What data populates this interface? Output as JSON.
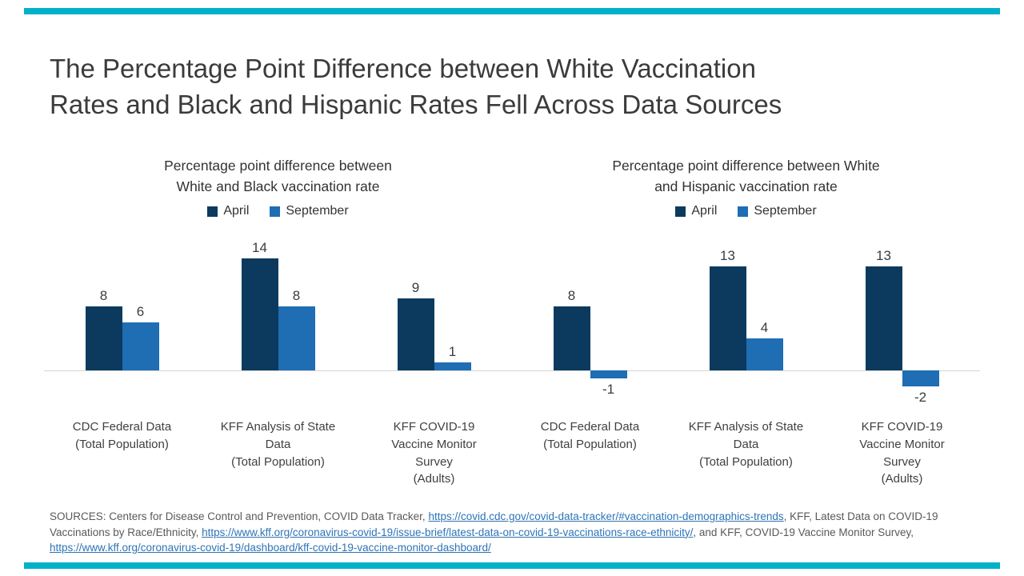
{
  "slide": {
    "title": "The Percentage Point Difference between White Vaccination\nRates and Black and Hispanic Rates Fell Across Data Sources"
  },
  "colors": {
    "accent": "#00b1c9",
    "april": "#0b3a5e",
    "september": "#1f6db3",
    "link": "#2e74b5"
  },
  "chart_data": [
    {
      "type": "bar",
      "title": "Percentage point difference between\nWhite and Black vaccination rate",
      "categories": [
        "CDC Federal Data\n(Total Population)",
        "KFF Analysis of State\nData\n(Total Population)",
        "KFF COVID-19\nVaccine Monitor\nSurvey\n(Adults)"
      ],
      "series": [
        {
          "name": "April",
          "color": "#0b3a5e",
          "values": [
            8,
            14,
            9
          ]
        },
        {
          "name": "September",
          "color": "#1f6db3",
          "values": [
            6,
            8,
            1
          ]
        }
      ],
      "ylim": [
        0,
        14
      ],
      "grid": false,
      "legend_position": "top"
    },
    {
      "type": "bar",
      "title": "Percentage point difference between White\nand Hispanic vaccination rate",
      "categories": [
        "CDC Federal Data\n(Total Population)",
        "KFF Analysis of State\nData\n(Total Population)",
        "KFF COVID-19\nVaccine Monitor\nSurvey\n(Adults)"
      ],
      "series": [
        {
          "name": "April",
          "color": "#0b3a5e",
          "values": [
            8,
            13,
            13
          ]
        },
        {
          "name": "September",
          "color": "#1f6db3",
          "values": [
            -1,
            4,
            -2
          ]
        }
      ],
      "ylim": [
        -2,
        13
      ],
      "grid": false,
      "legend_position": "top"
    }
  ],
  "sources": {
    "segments": [
      {
        "text": "SOURCES: Centers for Disease Control and Prevention, COVID Data Tracker, ",
        "link": false
      },
      {
        "text": "https://covid.cdc.gov/covid-data-tracker/#vaccination-demographics-trends",
        "link": true
      },
      {
        "text": ", KFF, Latest Data on COVID-19 Vaccinations by Race/Ethnicity, ",
        "link": false
      },
      {
        "text": "https://www.kff.org/coronavirus-covid-19/issue-brief/latest-data-on-covid-19-vaccinations-race-ethnicity/",
        "link": true
      },
      {
        "text": ", and KFF, COVID-19 Vaccine Monitor Survey, ",
        "link": false
      },
      {
        "text": "https://www.kff.org/coronavirus-covid-19/dashboard/kff-covid-19-vaccine-monitor-dashboard/",
        "link": true
      }
    ]
  }
}
